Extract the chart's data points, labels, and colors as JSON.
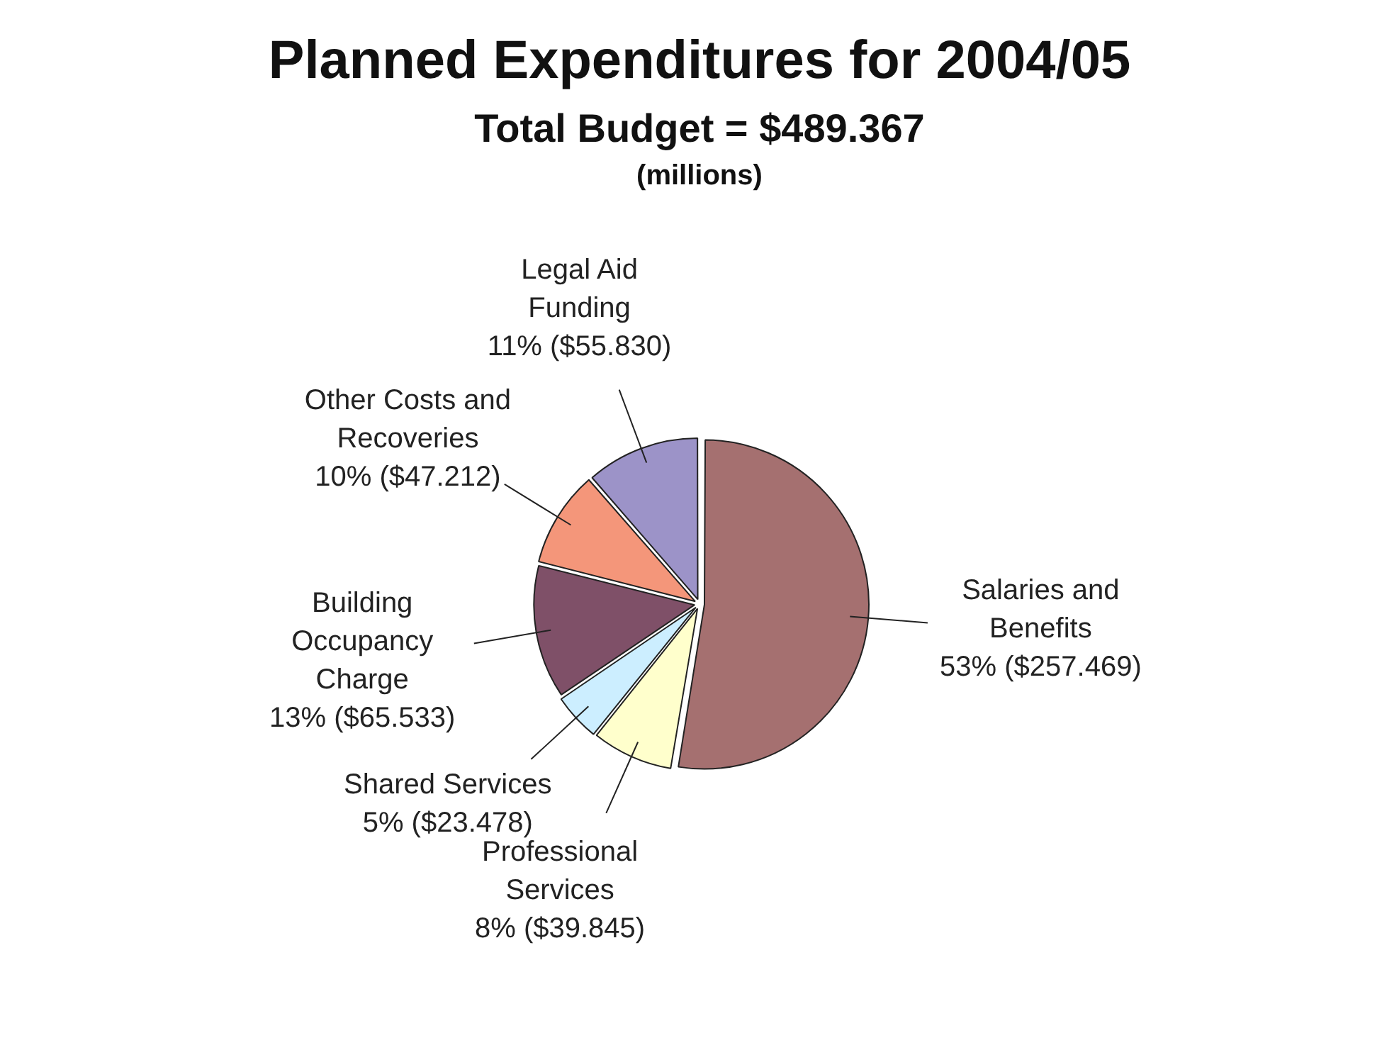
{
  "chart_data": {
    "type": "pie",
    "title": "Planned Expenditures for 2004/05",
    "subtitle": "Total Budget = $489.367",
    "annotations": [
      "(millions)"
    ],
    "categories": [
      "Salaries and Benefits",
      "Professional Services",
      "Shared Services",
      "Building Occupancy Charge",
      "Other Costs and Recoveries",
      "Legal Aid Funding"
    ],
    "values": [
      257.469,
      39.845,
      23.478,
      65.533,
      47.212,
      55.83
    ],
    "colors": [
      "#a57070",
      "#ffffcc",
      "#cceeff",
      "#7f5068",
      "#f4967a",
      "#9c93c8"
    ],
    "value_labels": [
      "53% ($257.469)",
      "8% ($39.845)",
      "5% ($23.478)",
      "13% ($65.533)",
      "10% ($47.212)",
      "11% ($55.830)"
    ]
  }
}
